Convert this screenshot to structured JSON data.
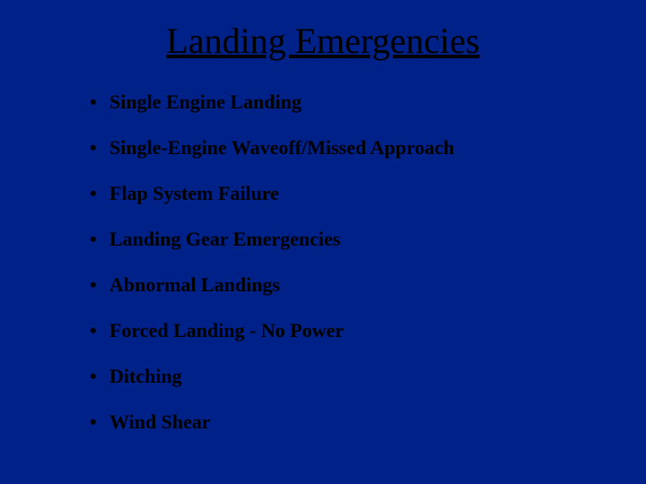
{
  "slide": {
    "title": "Landing Emergencies",
    "background_color": "#002187",
    "title_color": "#000000",
    "title_fontsize": 40,
    "title_underline": true,
    "text_color": "#000000",
    "bullet_fontsize": 22,
    "bullet_fontweight": "bold",
    "bullets": [
      "Single Engine Landing",
      "Single-Engine Waveoff/Missed Approach",
      "Flap System Failure",
      "Landing Gear Emergencies",
      "Abnormal Landings",
      "Forced Landing - No Power",
      "Ditching",
      "Wind Shear"
    ]
  }
}
